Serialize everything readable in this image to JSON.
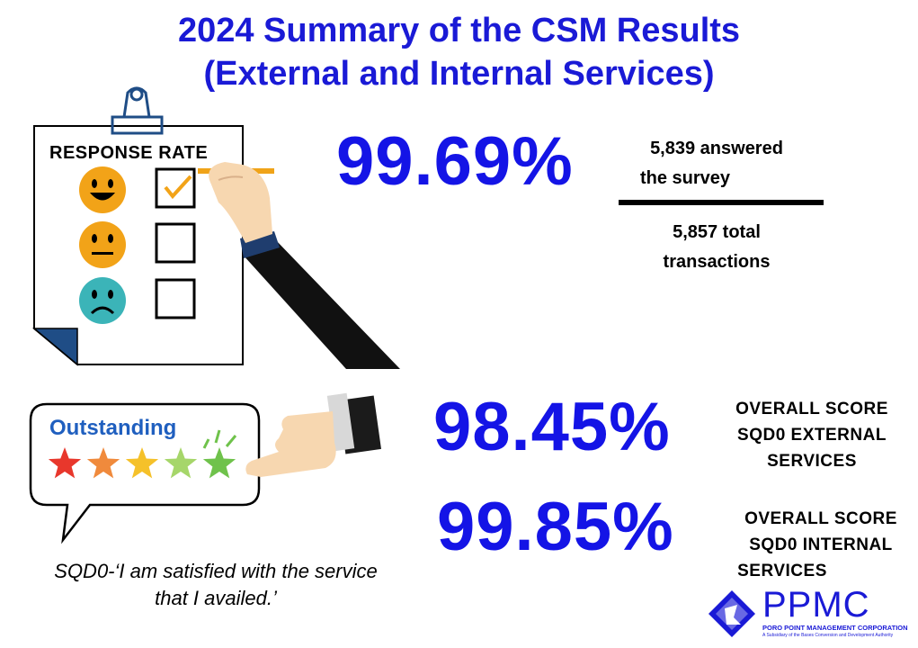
{
  "title_line1": "2024 Summary of the CSM Results",
  "title_line2": "(External and Internal Services)",
  "checklist": {
    "heading": "RESPONSE RATE",
    "items": [
      {
        "face": "happy-face-icon",
        "checked": true,
        "color": "#f2a318"
      },
      {
        "face": "neutral-face-icon",
        "checked": false,
        "color": "#f2a318"
      },
      {
        "face": "sad-face-icon",
        "checked": false,
        "color": "#3bb4b8"
      }
    ]
  },
  "response_rate": {
    "value": "99.69%",
    "numerator": "5,839 answered the survey",
    "numerator_line1": "5,839 answered",
    "numerator_line2": "the survey",
    "denominator_line1": "5,857 total",
    "denominator_line2": "transactions"
  },
  "rating_bubble": {
    "label": "Outstanding",
    "stars": 5,
    "star_colors": [
      "#e8372c",
      "#f08a3c",
      "#f5c12a",
      "#a6d66a",
      "#6fc24b"
    ]
  },
  "quote_line1": "SQD0-‘I am satisfied with the service",
  "quote_line2": "that I availed.’",
  "external": {
    "value": "98.45%",
    "line1": "OVERALL SCORE",
    "line2": "SQD0 EXTERNAL",
    "line3": "SERVICES"
  },
  "internal": {
    "value": "99.85%",
    "line1": "OVERALL SCORE",
    "line2": "SQD0 INTERNAL",
    "line3": "SERVICES"
  },
  "logo": {
    "name": "PPMC",
    "subtitle": "PORO POINT MANAGEMENT CORPORATION",
    "tagline": "A Subsidiary of the Bases Conversion and Development Authority",
    "color": "#1a1ad6"
  }
}
